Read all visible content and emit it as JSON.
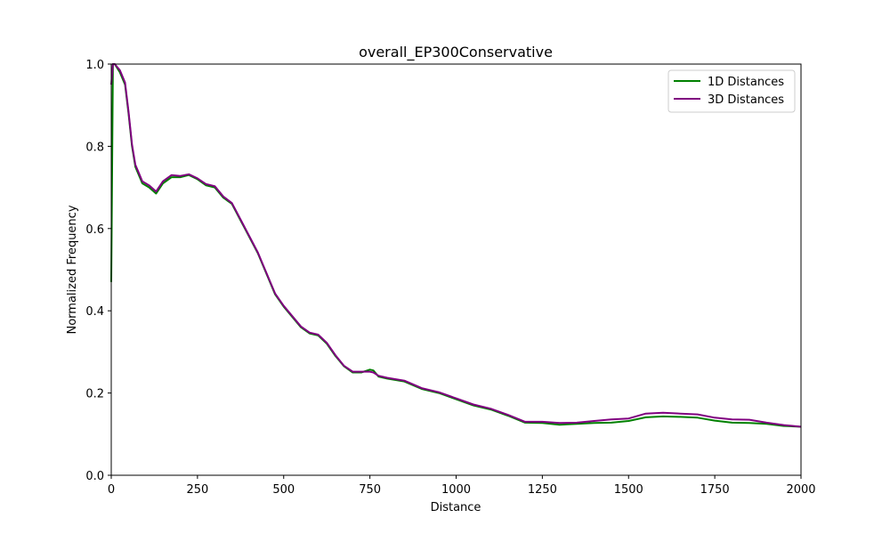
{
  "chart_data": {
    "type": "line",
    "title": "overall_EP300Conservative",
    "xlabel": "Distance",
    "ylabel": "Normalized Frequency",
    "xlim": [
      0,
      2000
    ],
    "ylim": [
      0.0,
      1.0
    ],
    "xticks": [
      "0",
      "250",
      "500",
      "750",
      "1000",
      "1250",
      "1500",
      "1750",
      "2000"
    ],
    "yticks": [
      "0.0",
      "0.2",
      "0.4",
      "0.6",
      "0.8",
      "1.0"
    ],
    "grid": false,
    "legend_position": "top-right",
    "series": [
      {
        "name": "1D Distances",
        "color": "#008000",
        "x": [
          0,
          5,
          10,
          25,
          40,
          50,
          60,
          70,
          80,
          90,
          110,
          130,
          150,
          175,
          200,
          225,
          250,
          275,
          300,
          325,
          350,
          375,
          400,
          425,
          450,
          475,
          500,
          525,
          550,
          575,
          600,
          625,
          650,
          675,
          700,
          725,
          750,
          760,
          775,
          800,
          850,
          900,
          950,
          1000,
          1050,
          1100,
          1150,
          1200,
          1250,
          1300,
          1350,
          1400,
          1450,
          1500,
          1550,
          1600,
          1650,
          1700,
          1750,
          1800,
          1850,
          1900,
          1950,
          2000
        ],
        "y": [
          0.47,
          1.0,
          1.0,
          0.98,
          0.95,
          0.88,
          0.8,
          0.75,
          0.73,
          0.71,
          0.7,
          0.685,
          0.71,
          0.725,
          0.725,
          0.73,
          0.72,
          0.705,
          0.7,
          0.675,
          0.66,
          0.62,
          0.58,
          0.54,
          0.49,
          0.44,
          0.41,
          0.385,
          0.36,
          0.345,
          0.34,
          0.32,
          0.29,
          0.265,
          0.25,
          0.25,
          0.257,
          0.255,
          0.24,
          0.235,
          0.228,
          0.21,
          0.2,
          0.185,
          0.17,
          0.16,
          0.145,
          0.128,
          0.127,
          0.123,
          0.125,
          0.127,
          0.128,
          0.132,
          0.141,
          0.143,
          0.142,
          0.14,
          0.133,
          0.128,
          0.127,
          0.125,
          0.12,
          0.118
        ]
      },
      {
        "name": "3D Distances",
        "color": "#800080",
        "x": [
          0,
          5,
          10,
          25,
          40,
          50,
          60,
          70,
          80,
          90,
          110,
          130,
          150,
          175,
          200,
          225,
          250,
          275,
          300,
          325,
          350,
          375,
          400,
          425,
          450,
          475,
          500,
          525,
          550,
          575,
          600,
          625,
          650,
          675,
          700,
          725,
          750,
          760,
          775,
          800,
          850,
          900,
          950,
          1000,
          1050,
          1100,
          1150,
          1200,
          1250,
          1300,
          1350,
          1400,
          1450,
          1500,
          1550,
          1600,
          1650,
          1700,
          1750,
          1800,
          1850,
          1900,
          1950,
          2000
        ],
        "y": [
          0.95,
          1.0,
          1.0,
          0.985,
          0.955,
          0.885,
          0.805,
          0.755,
          0.735,
          0.715,
          0.705,
          0.69,
          0.715,
          0.73,
          0.728,
          0.732,
          0.722,
          0.708,
          0.703,
          0.678,
          0.662,
          0.622,
          0.582,
          0.542,
          0.492,
          0.442,
          0.412,
          0.387,
          0.362,
          0.347,
          0.342,
          0.322,
          0.292,
          0.266,
          0.252,
          0.252,
          0.252,
          0.25,
          0.242,
          0.237,
          0.23,
          0.212,
          0.202,
          0.187,
          0.172,
          0.162,
          0.147,
          0.13,
          0.13,
          0.127,
          0.128,
          0.132,
          0.136,
          0.138,
          0.15,
          0.152,
          0.15,
          0.148,
          0.14,
          0.136,
          0.135,
          0.128,
          0.122,
          0.118
        ]
      }
    ]
  }
}
